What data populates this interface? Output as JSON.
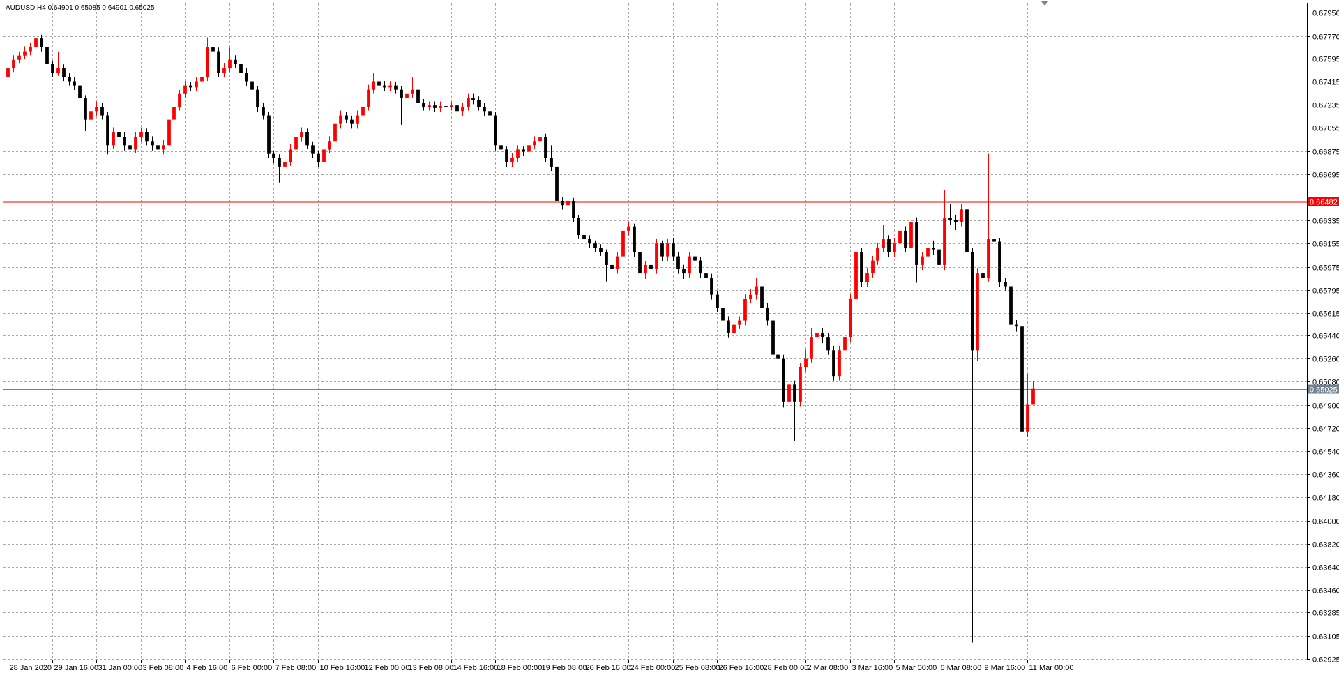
{
  "chart_data": {
    "type": "candlestick",
    "title": "AUDUSD,H4  0.64901 0.65085 0.64901 0.65025",
    "up_color": "#ff0000",
    "down_color": "#000000",
    "grid": true,
    "grid_color": "#a8a8a8",
    "xlim": [
      -0.77,
      234.6
    ],
    "ylim": [
      0.62918,
      0.68023
    ],
    "xticks": [
      {
        "value": 0,
        "label": "28 Jan 2020"
      },
      {
        "value": 8,
        "label": "29 Jan 16:00"
      },
      {
        "value": 16,
        "label": "31 Jan 00:00"
      },
      {
        "value": 24,
        "label": "3 Feb 08:00"
      },
      {
        "value": 32,
        "label": "4 Feb 16:00"
      },
      {
        "value": 40,
        "label": "6 Feb 00:00"
      },
      {
        "value": 48,
        "label": "7 Feb 08:00"
      },
      {
        "value": 56,
        "label": "10 Feb 16:00"
      },
      {
        "value": 64,
        "label": "12 Feb 00:00"
      },
      {
        "value": 72,
        "label": "13 Feb 08:00"
      },
      {
        "value": 80,
        "label": "14 Feb 16:00"
      },
      {
        "value": 88,
        "label": "18 Feb 00:00"
      },
      {
        "value": 96,
        "label": "19 Feb 08:00"
      },
      {
        "value": 104,
        "label": "20 Feb 16:00"
      },
      {
        "value": 112,
        "label": "24 Feb 00:00"
      },
      {
        "value": 120,
        "label": "25 Feb 08:00"
      },
      {
        "value": 128,
        "label": "26 Feb 16:00"
      },
      {
        "value": 136,
        "label": "28 Feb 00:00"
      },
      {
        "value": 144,
        "label": "2 Mar 08:00"
      },
      {
        "value": 152,
        "label": "3 Mar 16:00"
      },
      {
        "value": 160,
        "label": "5 Mar 00:00"
      },
      {
        "value": 168,
        "label": "6 Mar 08:00"
      },
      {
        "value": 176,
        "label": "9 Mar 16:00"
      },
      {
        "value": 184,
        "label": "11 Mar 00:00"
      }
    ],
    "yticks": [
      {
        "value": 0.6795,
        "label": "0.67950"
      },
      {
        "value": 0.6777,
        "label": "0.67770"
      },
      {
        "value": 0.67595,
        "label": "0.67595"
      },
      {
        "value": 0.67415,
        "label": "0.67415"
      },
      {
        "value": 0.67235,
        "label": "0.67235"
      },
      {
        "value": 0.67055,
        "label": "0.67055"
      },
      {
        "value": 0.66875,
        "label": "0.66875"
      },
      {
        "value": 0.66695,
        "label": "0.66695"
      },
      {
        "value": 0.66335,
        "label": "0.66335"
      },
      {
        "value": 0.66155,
        "label": "0.66155"
      },
      {
        "value": 0.65975,
        "label": "0.65975"
      },
      {
        "value": 0.65795,
        "label": "0.65795"
      },
      {
        "value": 0.65615,
        "label": "0.65615"
      },
      {
        "value": 0.6544,
        "label": "0.65440"
      },
      {
        "value": 0.6526,
        "label": "0.65260"
      },
      {
        "value": 0.6508,
        "label": "0.65080"
      },
      {
        "value": 0.649,
        "label": "0.64900"
      },
      {
        "value": 0.6472,
        "label": "0.64720"
      },
      {
        "value": 0.6454,
        "label": "0.64540"
      },
      {
        "value": 0.6436,
        "label": "0.64360"
      },
      {
        "value": 0.6418,
        "label": "0.64180"
      },
      {
        "value": 0.64,
        "label": "0.64000"
      },
      {
        "value": 0.6382,
        "label": "0.63820"
      },
      {
        "value": 0.6364,
        "label": "0.63640"
      },
      {
        "value": 0.6346,
        "label": "0.63460"
      },
      {
        "value": 0.63285,
        "label": "0.63285"
      },
      {
        "value": 0.63105,
        "label": "0.63105"
      },
      {
        "value": 0.62925,
        "label": "0.62925"
      }
    ],
    "levels": [
      {
        "value": 0.66482,
        "label": "0.66482",
        "color": "#ff0000"
      },
      {
        "value": 0.65025,
        "label": "0.65025",
        "color": "#708090"
      }
    ],
    "ohlc": [
      [
        0.67451,
        0.6756,
        0.6742,
        0.67518
      ],
      [
        0.67518,
        0.6762,
        0.6749,
        0.67585
      ],
      [
        0.67585,
        0.6765,
        0.67555,
        0.67618
      ],
      [
        0.67618,
        0.6769,
        0.6759,
        0.67651
      ],
      [
        0.67651,
        0.6772,
        0.6762,
        0.67684
      ],
      [
        0.67684,
        0.6779,
        0.6765,
        0.67751
      ],
      [
        0.67751,
        0.6778,
        0.6765,
        0.67684
      ],
      [
        0.67684,
        0.6771,
        0.6752,
        0.67551
      ],
      [
        0.67551,
        0.6758,
        0.6745,
        0.67485
      ],
      [
        0.67485,
        0.6765,
        0.6746,
        0.67518
      ],
      [
        0.67518,
        0.6755,
        0.6742,
        0.67451
      ],
      [
        0.67451,
        0.6748,
        0.67385,
        0.67418
      ],
      [
        0.67418,
        0.6745,
        0.6735,
        0.67385
      ],
      [
        0.67385,
        0.6741,
        0.6725,
        0.67285
      ],
      [
        0.67285,
        0.6731,
        0.6703,
        0.67119
      ],
      [
        0.67119,
        0.6724,
        0.6709,
        0.67186
      ],
      [
        0.67186,
        0.6726,
        0.6715,
        0.67219
      ],
      [
        0.67219,
        0.6725,
        0.6712,
        0.67152
      ],
      [
        0.67152,
        0.6718,
        0.6685,
        0.6692
      ],
      [
        0.6692,
        0.6706,
        0.6689,
        0.6702
      ],
      [
        0.6702,
        0.6705,
        0.6695,
        0.66986
      ],
      [
        0.66986,
        0.6702,
        0.6688,
        0.6692
      ],
      [
        0.6692,
        0.6696,
        0.6684,
        0.66887
      ],
      [
        0.66887,
        0.6702,
        0.6686,
        0.66986
      ],
      [
        0.66986,
        0.6706,
        0.6695,
        0.6702
      ],
      [
        0.6702,
        0.6705,
        0.6692,
        0.66953
      ],
      [
        0.66953,
        0.6699,
        0.6688,
        0.6692
      ],
      [
        0.6692,
        0.6695,
        0.668,
        0.66887
      ],
      [
        0.66887,
        0.6696,
        0.6685,
        0.6692
      ],
      [
        0.6692,
        0.6716,
        0.6689,
        0.67119
      ],
      [
        0.67119,
        0.6726,
        0.6709,
        0.67219
      ],
      [
        0.67219,
        0.6735,
        0.6719,
        0.67319
      ],
      [
        0.67319,
        0.6742,
        0.6729,
        0.67385
      ],
      [
        0.67385,
        0.6741,
        0.6734,
        0.6737
      ],
      [
        0.6737,
        0.6745,
        0.6734,
        0.67418
      ],
      [
        0.67418,
        0.6748,
        0.6739,
        0.67451
      ],
      [
        0.67451,
        0.6776,
        0.6742,
        0.67684
      ],
      [
        0.67684,
        0.6776,
        0.6762,
        0.67651
      ],
      [
        0.67651,
        0.6768,
        0.6745,
        0.67485
      ],
      [
        0.67485,
        0.6756,
        0.6745,
        0.67518
      ],
      [
        0.67518,
        0.6768,
        0.6749,
        0.67585
      ],
      [
        0.67585,
        0.6762,
        0.6752,
        0.67551
      ],
      [
        0.67551,
        0.6758,
        0.6745,
        0.67485
      ],
      [
        0.67485,
        0.6752,
        0.6738,
        0.67418
      ],
      [
        0.67418,
        0.6745,
        0.6732,
        0.67352
      ],
      [
        0.67352,
        0.6738,
        0.6718,
        0.67219
      ],
      [
        0.67219,
        0.6725,
        0.6712,
        0.67152
      ],
      [
        0.67152,
        0.6718,
        0.6682,
        0.66853
      ],
      [
        0.66853,
        0.6688,
        0.6678,
        0.6682
      ],
      [
        0.6682,
        0.6685,
        0.6663,
        0.66754
      ],
      [
        0.66754,
        0.6683,
        0.6672,
        0.66787
      ],
      [
        0.66787,
        0.6693,
        0.6676,
        0.66887
      ],
      [
        0.66887,
        0.6702,
        0.6686,
        0.66986
      ],
      [
        0.66986,
        0.6706,
        0.6695,
        0.6702
      ],
      [
        0.6702,
        0.6705,
        0.6689,
        0.6692
      ],
      [
        0.6692,
        0.6695,
        0.6682,
        0.66853
      ],
      [
        0.66853,
        0.6688,
        0.6675,
        0.66787
      ],
      [
        0.66787,
        0.6693,
        0.6676,
        0.66887
      ],
      [
        0.66887,
        0.6699,
        0.6686,
        0.66953
      ],
      [
        0.66953,
        0.6712,
        0.6692,
        0.67086
      ],
      [
        0.67086,
        0.6719,
        0.6705,
        0.67152
      ],
      [
        0.67152,
        0.6718,
        0.6709,
        0.67119
      ],
      [
        0.67119,
        0.6715,
        0.6705,
        0.67086
      ],
      [
        0.67086,
        0.6719,
        0.6705,
        0.67152
      ],
      [
        0.67152,
        0.6725,
        0.6712,
        0.67219
      ],
      [
        0.67219,
        0.6739,
        0.6719,
        0.67352
      ],
      [
        0.67352,
        0.6748,
        0.6732,
        0.67418
      ],
      [
        0.67418,
        0.6748,
        0.6735,
        0.67385
      ],
      [
        0.67385,
        0.6742,
        0.6734,
        0.6737
      ],
      [
        0.6737,
        0.6742,
        0.6734,
        0.67385
      ],
      [
        0.67385,
        0.6741,
        0.6732,
        0.67352
      ],
      [
        0.67352,
        0.6738,
        0.6708,
        0.67285
      ],
      [
        0.67285,
        0.6735,
        0.6725,
        0.67319
      ],
      [
        0.67319,
        0.6745,
        0.6729,
        0.67352
      ],
      [
        0.67352,
        0.6738,
        0.6722,
        0.67252
      ],
      [
        0.67252,
        0.6728,
        0.6719,
        0.67219
      ],
      [
        0.67219,
        0.6726,
        0.6719,
        0.6723
      ],
      [
        0.6723,
        0.6726,
        0.6718,
        0.6721
      ],
      [
        0.6721,
        0.6726,
        0.6718,
        0.67225
      ],
      [
        0.67225,
        0.6725,
        0.6718,
        0.67215
      ],
      [
        0.67215,
        0.6726,
        0.6719,
        0.6723
      ],
      [
        0.6723,
        0.6726,
        0.6715,
        0.67186
      ],
      [
        0.67186,
        0.6725,
        0.6715,
        0.67219
      ],
      [
        0.67219,
        0.6732,
        0.6719,
        0.67285
      ],
      [
        0.67285,
        0.6732,
        0.6724,
        0.6727
      ],
      [
        0.6727,
        0.673,
        0.6719,
        0.67219
      ],
      [
        0.67219,
        0.6725,
        0.6715,
        0.67186
      ],
      [
        0.67186,
        0.6721,
        0.6712,
        0.67152
      ],
      [
        0.67152,
        0.6718,
        0.6688,
        0.6692
      ],
      [
        0.6692,
        0.6695,
        0.6685,
        0.66887
      ],
      [
        0.66887,
        0.6691,
        0.6675,
        0.66787
      ],
      [
        0.66787,
        0.6686,
        0.6675,
        0.6682
      ],
      [
        0.6682,
        0.6692,
        0.6679,
        0.66887
      ],
      [
        0.66887,
        0.6691,
        0.6684,
        0.6687
      ],
      [
        0.6687,
        0.6696,
        0.6684,
        0.6692
      ],
      [
        0.6692,
        0.6699,
        0.6689,
        0.66953
      ],
      [
        0.66953,
        0.6708,
        0.6692,
        0.66986
      ],
      [
        0.66986,
        0.6701,
        0.6679,
        0.6682
      ],
      [
        0.6682,
        0.6692,
        0.6672,
        0.66754
      ],
      [
        0.66754,
        0.6678,
        0.6645,
        0.66488
      ],
      [
        0.66488,
        0.6652,
        0.6642,
        0.66454
      ],
      [
        0.66454,
        0.6652,
        0.6642,
        0.66488
      ],
      [
        0.66488,
        0.6651,
        0.6632,
        0.66355
      ],
      [
        0.66355,
        0.6638,
        0.6619,
        0.66222
      ],
      [
        0.66222,
        0.6625,
        0.6616,
        0.66189
      ],
      [
        0.66189,
        0.6622,
        0.6612,
        0.66156
      ],
      [
        0.66156,
        0.6618,
        0.6609,
        0.66122
      ],
      [
        0.66122,
        0.6615,
        0.6606,
        0.66089
      ],
      [
        0.66089,
        0.6611,
        0.6586,
        0.65989
      ],
      [
        0.65989,
        0.6602,
        0.6592,
        0.65956
      ],
      [
        0.65956,
        0.6609,
        0.6592,
        0.66056
      ],
      [
        0.66056,
        0.664,
        0.6602,
        0.66255
      ],
      [
        0.66255,
        0.6632,
        0.6622,
        0.66289
      ],
      [
        0.66289,
        0.6631,
        0.6605,
        0.66089
      ],
      [
        0.66089,
        0.6611,
        0.6586,
        0.65923
      ],
      [
        0.65923,
        0.6602,
        0.6588,
        0.65989
      ],
      [
        0.65989,
        0.6602,
        0.6592,
        0.65956
      ],
      [
        0.65956,
        0.6619,
        0.6592,
        0.66156
      ],
      [
        0.66156,
        0.6618,
        0.6602,
        0.66056
      ],
      [
        0.66056,
        0.6619,
        0.6602,
        0.66156
      ],
      [
        0.66156,
        0.662,
        0.6602,
        0.66056
      ],
      [
        0.66056,
        0.6609,
        0.6592,
        0.65956
      ],
      [
        0.65956,
        0.6599,
        0.6588,
        0.65923
      ],
      [
        0.65923,
        0.6609,
        0.6589,
        0.66056
      ],
      [
        0.66056,
        0.6609,
        0.6599,
        0.66023
      ],
      [
        0.66023,
        0.6605,
        0.6589,
        0.65923
      ],
      [
        0.65923,
        0.6595,
        0.6586,
        0.6589
      ],
      [
        0.6589,
        0.6592,
        0.6572,
        0.65757
      ],
      [
        0.65757,
        0.6579,
        0.6562,
        0.65657
      ],
      [
        0.65657,
        0.6569,
        0.6552,
        0.65557
      ],
      [
        0.65557,
        0.6559,
        0.6542,
        0.65458
      ],
      [
        0.65458,
        0.6556,
        0.6543,
        0.65524
      ],
      [
        0.65524,
        0.6559,
        0.6549,
        0.65557
      ],
      [
        0.65557,
        0.6576,
        0.6552,
        0.65723
      ],
      [
        0.65723,
        0.658,
        0.6569,
        0.65757
      ],
      [
        0.65757,
        0.6589,
        0.6572,
        0.65823
      ],
      [
        0.65823,
        0.6585,
        0.6562,
        0.65657
      ],
      [
        0.65657,
        0.6569,
        0.6552,
        0.65557
      ],
      [
        0.65557,
        0.6559,
        0.6525,
        0.65291
      ],
      [
        0.65291,
        0.6533,
        0.6522,
        0.65258
      ],
      [
        0.65258,
        0.6529,
        0.6488,
        0.64926
      ],
      [
        0.64926,
        0.651,
        0.6436,
        0.65059
      ],
      [
        0.65059,
        0.6509,
        0.6462,
        0.64926
      ],
      [
        0.64926,
        0.6523,
        0.6489,
        0.65192
      ],
      [
        0.65192,
        0.6533,
        0.6516,
        0.65258
      ],
      [
        0.65258,
        0.655,
        0.6523,
        0.65424
      ],
      [
        0.65424,
        0.6562,
        0.6539,
        0.65458
      ],
      [
        0.65458,
        0.655,
        0.6538,
        0.65424
      ],
      [
        0.65424,
        0.6546,
        0.6529,
        0.65325
      ],
      [
        0.65325,
        0.6536,
        0.6509,
        0.65125
      ],
      [
        0.65125,
        0.6536,
        0.6509,
        0.65325
      ],
      [
        0.65325,
        0.6546,
        0.6529,
        0.65424
      ],
      [
        0.65424,
        0.6576,
        0.6539,
        0.65723
      ],
      [
        0.65723,
        0.6648,
        0.6569,
        0.66089
      ],
      [
        0.66089,
        0.6612,
        0.6582,
        0.65856
      ],
      [
        0.65856,
        0.6596,
        0.6582,
        0.65923
      ],
      [
        0.65923,
        0.6606,
        0.6589,
        0.66023
      ],
      [
        0.66023,
        0.6616,
        0.6599,
        0.66122
      ],
      [
        0.66122,
        0.663,
        0.6609,
        0.66189
      ],
      [
        0.66189,
        0.6622,
        0.6605,
        0.66089
      ],
      [
        0.66089,
        0.662,
        0.6605,
        0.66156
      ],
      [
        0.66156,
        0.6629,
        0.6612,
        0.66255
      ],
      [
        0.66255,
        0.6629,
        0.6609,
        0.66122
      ],
      [
        0.66122,
        0.6636,
        0.6609,
        0.66322
      ],
      [
        0.66322,
        0.6636,
        0.6585,
        0.65989
      ],
      [
        0.65989,
        0.6609,
        0.6595,
        0.66056
      ],
      [
        0.66056,
        0.6616,
        0.6602,
        0.66122
      ],
      [
        0.66122,
        0.6618,
        0.6607,
        0.6611
      ],
      [
        0.6611,
        0.6614,
        0.6595,
        0.65989
      ],
      [
        0.65989,
        0.6657,
        0.6595,
        0.66355
      ],
      [
        0.66355,
        0.6646,
        0.663,
        0.6634
      ],
      [
        0.6634,
        0.6638,
        0.6626,
        0.66322
      ],
      [
        0.66322,
        0.6646,
        0.6629,
        0.66421
      ],
      [
        0.66421,
        0.6645,
        0.6605,
        0.66089
      ],
      [
        0.66089,
        0.6612,
        0.63051,
        0.65325
      ],
      [
        0.65325,
        0.6596,
        0.6524,
        0.65923
      ],
      [
        0.65923,
        0.66,
        0.6585,
        0.6589
      ],
      [
        0.6589,
        0.66853,
        0.6586,
        0.66189
      ],
      [
        0.66189,
        0.6622,
        0.661,
        0.6617
      ],
      [
        0.6617,
        0.662,
        0.6582,
        0.65856
      ],
      [
        0.65856,
        0.6589,
        0.6579,
        0.65823
      ],
      [
        0.65823,
        0.6585,
        0.6548,
        0.65524
      ],
      [
        0.65524,
        0.6556,
        0.6547,
        0.6551
      ],
      [
        0.6551,
        0.6554,
        0.6465,
        0.64693
      ],
      [
        0.64693,
        0.6514,
        0.6465,
        0.64901
      ],
      [
        0.64901,
        0.65085,
        0.64901,
        0.65025
      ]
    ]
  }
}
